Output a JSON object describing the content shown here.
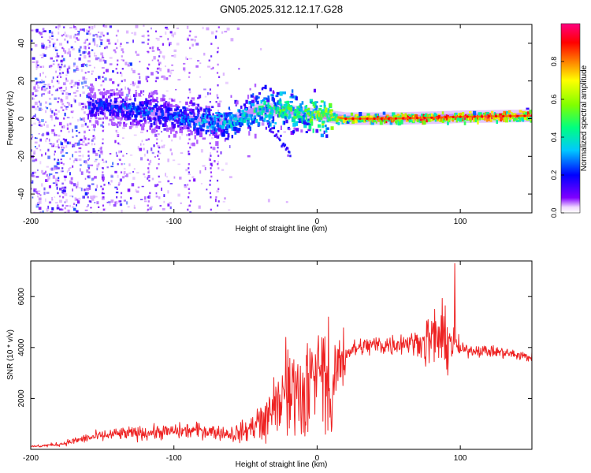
{
  "title": "GN05.2025.312.12.17.G28",
  "colors": {
    "line": "#ee2222",
    "frame": "#000000"
  },
  "chart_data": [
    {
      "type": "heatmap",
      "title": "GN05.2025.312.12.17.G28",
      "xlabel": "Height of straight line (km)",
      "ylabel": "Frequency (Hz)",
      "xlim": [
        -200,
        150
      ],
      "ylim": [
        -50,
        50
      ],
      "xticks": [
        -200,
        -100,
        0,
        100
      ],
      "yticks": [
        -40,
        -20,
        0,
        20,
        40
      ],
      "colorbar": {
        "label": "Normalized spectral amplitude",
        "range": [
          0,
          1
        ],
        "ticks": [
          "0.0",
          "0.2",
          "0.4",
          "0.6",
          "0.8"
        ],
        "colormap": [
          "#ffffff",
          "#8000ff",
          "#0000ff",
          "#00c8ff",
          "#00ff80",
          "#80ff00",
          "#ffff00",
          "#ff8000",
          "#ff0000",
          "#ff0080"
        ]
      },
      "ridge": {
        "x": [
          -150,
          -120,
          -100,
          -80,
          -60,
          -45,
          -35,
          -20,
          -10,
          0,
          10,
          20,
          50,
          80,
          100,
          150
        ],
        "freq": [
          7,
          4,
          1,
          -1,
          -2,
          4,
          5,
          4,
          3,
          2,
          1,
          0,
          0,
          0.5,
          1,
          1.5
        ],
        "peak_amplitude": [
          0.25,
          0.3,
          0.3,
          0.35,
          0.4,
          0.45,
          0.5,
          0.55,
          0.5,
          0.65,
          0.7,
          0.75,
          0.9,
          0.9,
          0.9,
          0.95
        ]
      }
    },
    {
      "type": "line",
      "xlabel": "Height of straight line (km)",
      "ylabel": "SNR (10 * v/v)",
      "xlim": [
        -200,
        150
      ],
      "ylim": [
        0,
        7400
      ],
      "xticks": [
        -200,
        -100,
        0,
        100
      ],
      "yticks": [
        2000,
        4000,
        6000
      ],
      "series": [
        {
          "name": "SNR",
          "x": [
            -200,
            -180,
            -160,
            -140,
            -120,
            -100,
            -80,
            -60,
            -50,
            -45,
            -40,
            -35,
            -30,
            -25,
            -20,
            -15,
            -10,
            -5,
            0,
            5,
            8,
            10,
            12,
            15,
            20,
            30,
            40,
            50,
            60,
            70,
            80,
            85,
            90,
            95,
            100,
            110,
            120,
            130,
            140,
            150
          ],
          "y": [
            100,
            200,
            450,
            600,
            650,
            700,
            750,
            600,
            700,
            900,
            1200,
            1500,
            1900,
            2200,
            2400,
            2600,
            2800,
            3000,
            3300,
            3600,
            2500,
            1400,
            2800,
            3400,
            3800,
            4000,
            4100,
            4100,
            4200,
            4200,
            4300,
            4400,
            4200,
            4300,
            3900,
            3900,
            3850,
            3800,
            3700,
            3600
          ],
          "spikes": [
            {
              "x": 96,
              "y": 7300
            },
            {
              "x": 82,
              "y": 5500
            },
            {
              "x": 8,
              "y": 5200
            },
            {
              "x": -22,
              "y": 4400
            },
            {
              "x": 10,
              "y": 700
            }
          ]
        }
      ]
    }
  ]
}
